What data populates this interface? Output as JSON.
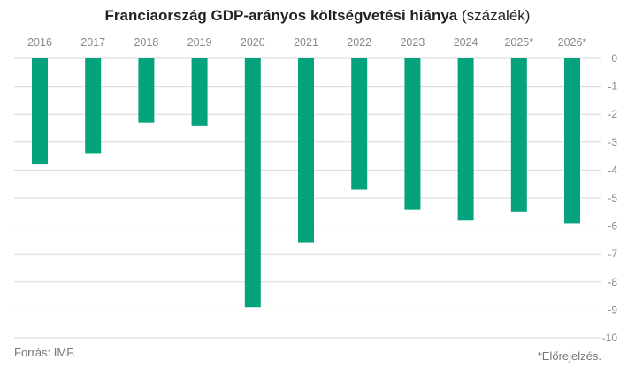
{
  "title": {
    "bold": "Franciaország GDP-arányos költségvetési hiánya",
    "unit": "(százalék)"
  },
  "footer": {
    "source": "Forrás: IMF.",
    "note": "*Előrejelzés."
  },
  "colors": {
    "bar": "#05a27e",
    "grid": "#d9d9d9",
    "axis_text": "#888888"
  },
  "chart_data": {
    "type": "bar",
    "categories": [
      "2016",
      "2017",
      "2018",
      "2019",
      "2020",
      "2021",
      "2022",
      "2023",
      "2024",
      "2025*",
      "2026*"
    ],
    "values": [
      -3.8,
      -3.4,
      -2.3,
      -2.4,
      -8.9,
      -6.6,
      -4.7,
      -5.4,
      -5.8,
      -5.5,
      -5.9
    ],
    "ylim": [
      -10,
      0
    ],
    "yticks": [
      "0",
      "-1",
      "-2",
      "-3",
      "-4",
      "-5",
      "-6",
      "-7",
      "-8",
      "-9",
      "-10"
    ],
    "grid": true,
    "category_axis_position": "top",
    "value_axis_position": "right"
  }
}
